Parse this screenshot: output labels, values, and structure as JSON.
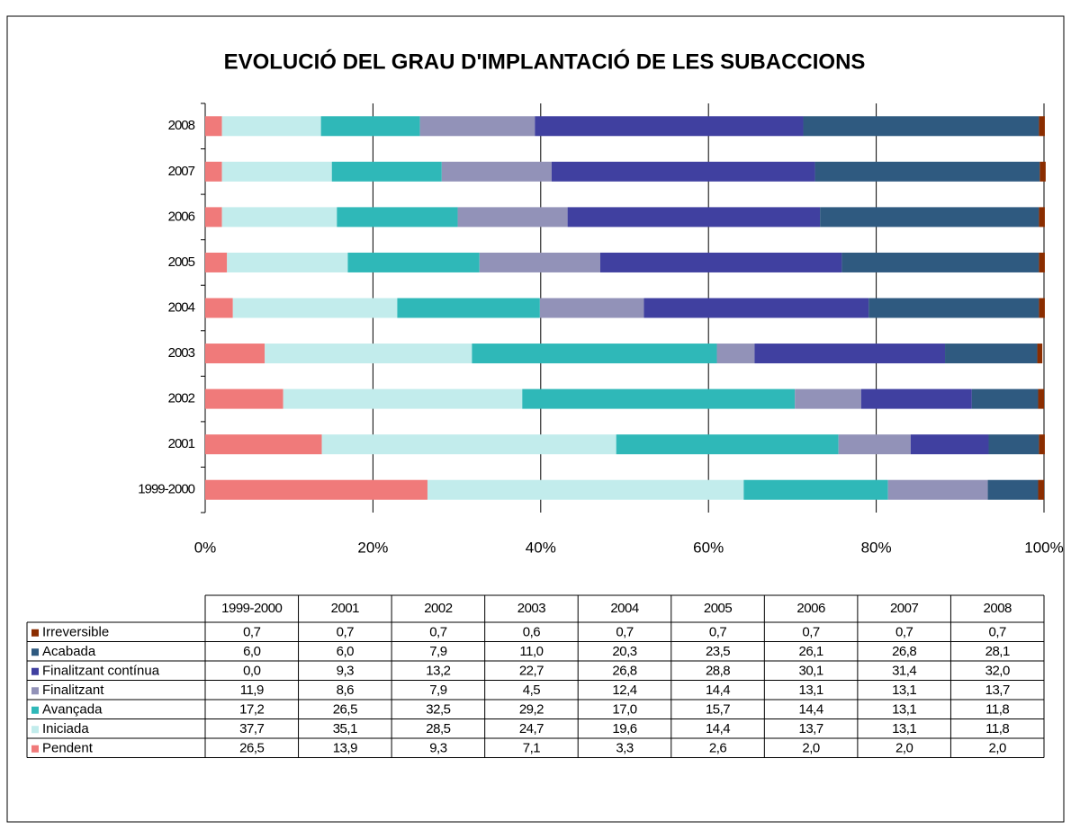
{
  "chart_data": {
    "type": "stacked_barh",
    "title": "EVOLUCIÓ DEL GRAU D'IMPLANTACIÓ DE LES SUBACCIONS",
    "categories": [
      "1999-2000",
      "2001",
      "2002",
      "2003",
      "2004",
      "2005",
      "2006",
      "2007",
      "2008"
    ],
    "series": [
      {
        "name": "Pendent",
        "color": "#f07a7a",
        "values": [
          26.5,
          13.9,
          9.3,
          7.1,
          3.3,
          2.6,
          2.0,
          2.0,
          2.0
        ],
        "value_labels": [
          "26,5",
          "13,9",
          "9,3",
          "7,1",
          "3,3",
          "2,6",
          "2,0",
          "2,0",
          "2,0"
        ]
      },
      {
        "name": "Iniciada",
        "color": "#c2ecec",
        "values": [
          37.7,
          35.1,
          28.5,
          24.7,
          19.6,
          14.4,
          13.7,
          13.1,
          11.8
        ],
        "value_labels": [
          "37,7",
          "35,1",
          "28,5",
          "24,7",
          "19,6",
          "14,4",
          "13,7",
          "13,1",
          "11,8"
        ]
      },
      {
        "name": "Avançada",
        "color": "#2fb8b8",
        "values": [
          17.2,
          26.5,
          32.5,
          29.2,
          17.0,
          15.7,
          14.4,
          13.1,
          11.8
        ],
        "value_labels": [
          "17,2",
          "26,5",
          "32,5",
          "29,2",
          "17,0",
          "15,7",
          "14,4",
          "13,1",
          "11,8"
        ]
      },
      {
        "name": "Finalitzant",
        "color": "#9292b8",
        "values": [
          11.9,
          8.6,
          7.9,
          4.5,
          12.4,
          14.4,
          13.1,
          13.1,
          13.7
        ],
        "value_labels": [
          "11,9",
          "8,6",
          "7,9",
          "4,5",
          "12,4",
          "14,4",
          "13,1",
          "13,1",
          "13,7"
        ]
      },
      {
        "name": "Finalitzant contínua",
        "color": "#4040a0",
        "values": [
          0.0,
          9.3,
          13.2,
          22.7,
          26.8,
          28.8,
          30.1,
          31.4,
          32.0
        ],
        "value_labels": [
          "0,0",
          "9,3",
          "13,2",
          "22,7",
          "26,8",
          "28,8",
          "30,1",
          "31,4",
          "32,0"
        ]
      },
      {
        "name": "Acabada",
        "color": "#2f5a80",
        "values": [
          6.0,
          6.0,
          7.9,
          11.0,
          20.3,
          23.5,
          26.1,
          26.8,
          28.1
        ],
        "value_labels": [
          "6,0",
          "6,0",
          "7,9",
          "11,0",
          "20,3",
          "23,5",
          "26,1",
          "26,8",
          "28,1"
        ]
      },
      {
        "name": "Irreversible",
        "color": "#8b2d00",
        "values": [
          0.7,
          0.7,
          0.7,
          0.6,
          0.7,
          0.7,
          0.7,
          0.7,
          0.7
        ],
        "value_labels": [
          "0,7",
          "0,7",
          "0,7",
          "0,6",
          "0,7",
          "0,7",
          "0,7",
          "0,7",
          "0,7"
        ]
      }
    ],
    "xlim": [
      0,
      100
    ],
    "xticks": [
      {
        "value": 0,
        "label": "0%"
      },
      {
        "value": 20,
        "label": "20%"
      },
      {
        "value": 40,
        "label": "40%"
      },
      {
        "value": 60,
        "label": "60%"
      },
      {
        "value": 80,
        "label": "80%"
      },
      {
        "value": 100,
        "label": "100%"
      }
    ],
    "grid": true
  }
}
